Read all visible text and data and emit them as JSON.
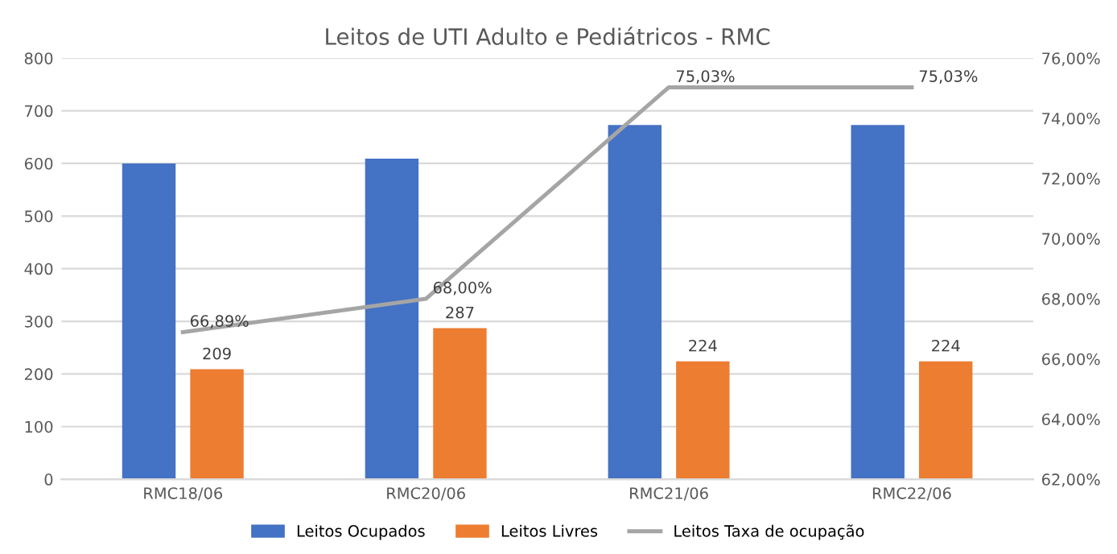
{
  "chart_data": {
    "type": "bar",
    "title": "Leitos de UTI Adulto e Pediátricos - RMC",
    "categories": [
      "RMC18/06",
      "RMC20/06",
      "RMC21/06",
      "RMC22/06"
    ],
    "series": [
      {
        "name": "Leitos Ocupados",
        "color": "#4472c4",
        "values": [
          600,
          609,
          673,
          673
        ]
      },
      {
        "name": "Leitos Livres",
        "color": "#ed7d31",
        "values": [
          209,
          287,
          224,
          224
        ],
        "value_labels": [
          "209",
          "287",
          "224",
          "224"
        ]
      },
      {
        "name": "Leitos Taxa de ocupação",
        "type": "line",
        "axis": "y2",
        "color": "#a5a5a5",
        "values": [
          66.89,
          68.0,
          75.03,
          75.03
        ],
        "value_labels": [
          "66,89%",
          "68,00%",
          "75,03%",
          "75,03%"
        ]
      }
    ],
    "ylim": [
      0,
      800
    ],
    "yticks": [
      0,
      100,
      200,
      300,
      400,
      500,
      600,
      700,
      800
    ],
    "y2lim": [
      62,
      76
    ],
    "y2ticks": [
      {
        "value": 62,
        "label": "62,00%"
      },
      {
        "value": 64,
        "label": "64,00%"
      },
      {
        "value": 66,
        "label": "66,00%"
      },
      {
        "value": 68,
        "label": "68,00%"
      },
      {
        "value": 70,
        "label": "70,00%"
      },
      {
        "value": 72,
        "label": "72,00%"
      },
      {
        "value": 74,
        "label": "74,00%"
      },
      {
        "value": 76,
        "label": "76,00%"
      }
    ],
    "grid": "y",
    "legend": "bottom",
    "marker": "none"
  }
}
